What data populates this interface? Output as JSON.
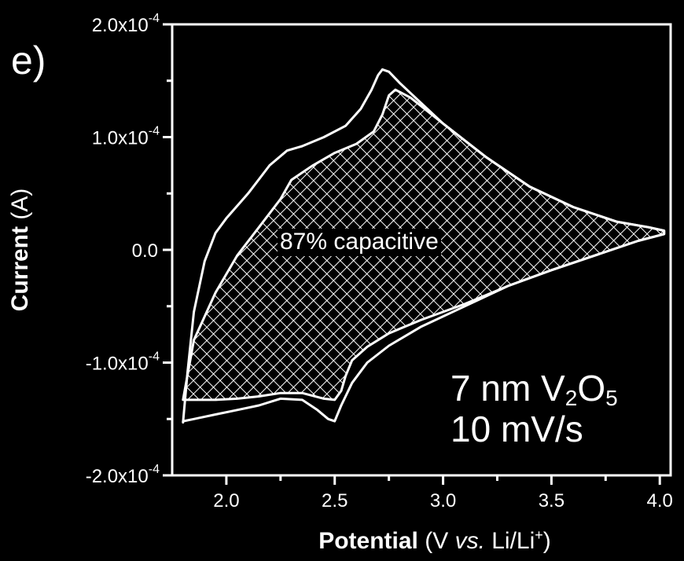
{
  "panel_label": "e)",
  "chart_data": {
    "type": "line",
    "xlabel_main": "Potential",
    "xlabel_unit_prefix": "(V ",
    "xlabel_unit_italic": "vs.",
    "xlabel_unit_suffix": " Li/Li",
    "xlabel_unit_sup": "+",
    "xlabel_unit_close": ")",
    "ylabel_main": "Current",
    "ylabel_unit": "(A)",
    "xlim": [
      1.75,
      4.05
    ],
    "ylim": [
      -0.0002,
      0.0002
    ],
    "xticks": [
      2.0,
      2.5,
      3.0,
      3.5,
      4.0
    ],
    "xtick_labels": [
      "2.0",
      "2.5",
      "3.0",
      "3.5",
      "4.0"
    ],
    "yticks": [
      -0.0002,
      -0.0001,
      0.0,
      0.0001,
      0.0002
    ],
    "ytick_labels": [
      {
        "base": "-2.0x10",
        "exp": "-4"
      },
      {
        "base": "-1.0x10",
        "exp": "-4"
      },
      {
        "base": "0.0",
        "exp": ""
      },
      {
        "base": "1.0x10",
        "exp": "-4"
      },
      {
        "base": "2.0x10",
        "exp": "-4"
      }
    ],
    "grid": false,
    "series": [
      {
        "style": "outline",
        "x": [
          1.8,
          1.82,
          1.85,
          1.9,
          1.95,
          2.0,
          2.1,
          2.2,
          2.28,
          2.35,
          2.45,
          2.55,
          2.62,
          2.67,
          2.7,
          2.72,
          2.75,
          2.8,
          2.9,
          3.0,
          3.2,
          3.4,
          3.6,
          3.8,
          3.95,
          4.02,
          4.02,
          3.9,
          3.7,
          3.5,
          3.3,
          3.1,
          2.9,
          2.75,
          2.65,
          2.58,
          2.53,
          2.5,
          2.47,
          2.42,
          2.35,
          2.25,
          2.15,
          2.05,
          1.95,
          1.85,
          1.8,
          1.8
        ],
        "y": [
          -0.000153,
          -0.00011,
          -5.5e-05,
          -1e-05,
          1.5e-05,
          2.8e-05,
          5e-05,
          7.5e-05,
          8.8e-05,
          9.2e-05,
          0.0001,
          0.00011,
          0.000125,
          0.000142,
          0.000155,
          0.00016,
          0.000158,
          0.000148,
          0.00013,
          0.000112,
          8.2e-05,
          5.6e-05,
          3.8e-05,
          2.5e-05,
          2e-05,
          1.7e-05,
          1.4e-05,
          8e-06,
          -5e-06,
          -1.8e-05,
          -3.2e-05,
          -5e-05,
          -6.8e-05,
          -8.5e-05,
          -0.0001,
          -0.000118,
          -0.000138,
          -0.000152,
          -0.00015,
          -0.000142,
          -0.000133,
          -0.000132,
          -0.000138,
          -0.000142,
          -0.000146,
          -0.00015,
          -0.000152,
          -0.000153
        ]
      },
      {
        "style": "hatched-capacitive",
        "x": [
          1.8,
          1.85,
          1.95,
          2.05,
          2.15,
          2.25,
          2.3,
          2.4,
          2.5,
          2.6,
          2.68,
          2.72,
          2.75,
          2.78,
          2.85,
          3.0,
          3.2,
          3.4,
          3.6,
          3.8,
          3.95,
          4.02,
          4.02,
          3.9,
          3.7,
          3.5,
          3.3,
          3.1,
          2.9,
          2.75,
          2.65,
          2.58,
          2.55,
          2.53,
          2.5,
          2.45,
          2.35,
          2.25,
          2.15,
          2.05,
          1.95,
          1.85,
          1.8
        ],
        "y": [
          -0.000133,
          -8e-05,
          -3.8e-05,
          -5e-06,
          2e-05,
          4.5e-05,
          6.2e-05,
          7.5e-05,
          8.6e-05,
          9.4e-05,
          0.000105,
          0.00012,
          0.000137,
          0.000142,
          0.000135,
          0.000112,
          8.2e-05,
          5.6e-05,
          3.8e-05,
          2.5e-05,
          2e-05,
          1.7e-05,
          1.4e-05,
          8e-06,
          -5e-06,
          -1.8e-05,
          -3.2e-05,
          -4.8e-05,
          -6.2e-05,
          -7.4e-05,
          -8.6e-05,
          -9.8e-05,
          -0.000112,
          -0.000125,
          -0.000133,
          -0.000132,
          -0.000127,
          -0.000127,
          -0.00013,
          -0.000132,
          -0.000133,
          -0.000133,
          -0.000133
        ]
      }
    ],
    "annotations": {
      "capacitive": "87% capacitive",
      "sample_prefix": "7 nm V",
      "sample_sub1": "2",
      "sample_mid": "O",
      "sample_sub2": "5",
      "scan_rate": "10 mV/s"
    }
  }
}
